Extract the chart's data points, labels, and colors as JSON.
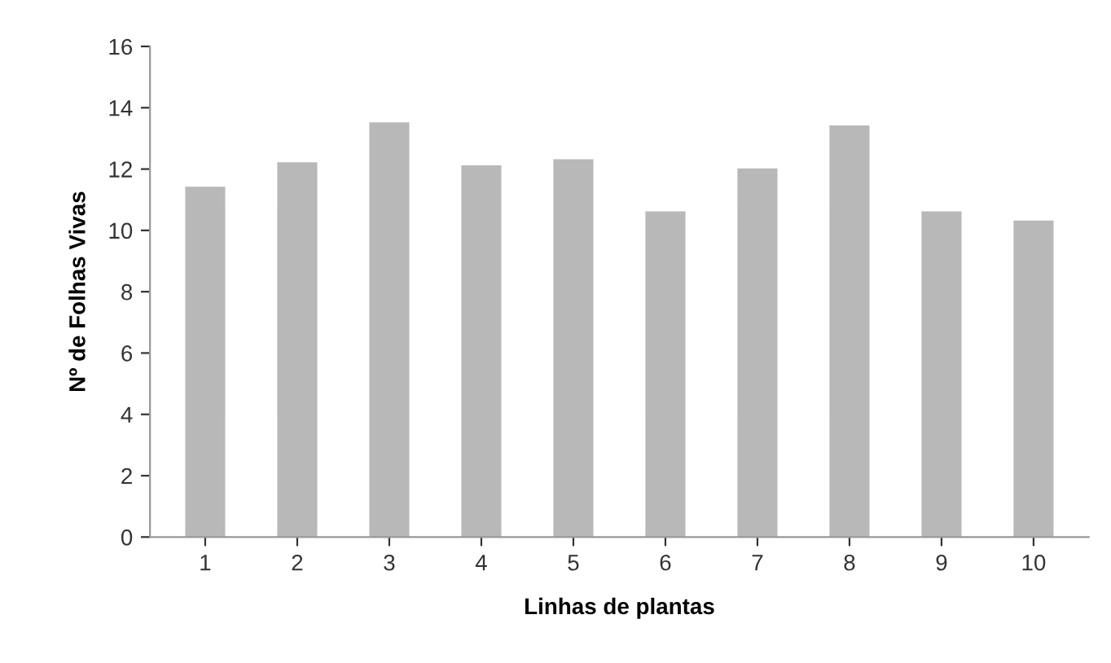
{
  "chart_data": {
    "type": "bar",
    "xlabel": "Linhas de plantas",
    "ylabel": "Nº de Folhas Vivas",
    "categories": [
      "1",
      "2",
      "3",
      "4",
      "5",
      "6",
      "7",
      "8",
      "9",
      "10"
    ],
    "values": [
      11.4,
      12.2,
      13.5,
      12.1,
      12.3,
      10.6,
      12.0,
      13.4,
      10.6,
      10.3
    ],
    "color": "#b8b8b8",
    "ylim": [
      0,
      16
    ],
    "yticks": [
      0,
      2,
      4,
      6,
      8,
      10,
      12,
      14,
      16
    ],
    "grid": false,
    "legend": false
  }
}
